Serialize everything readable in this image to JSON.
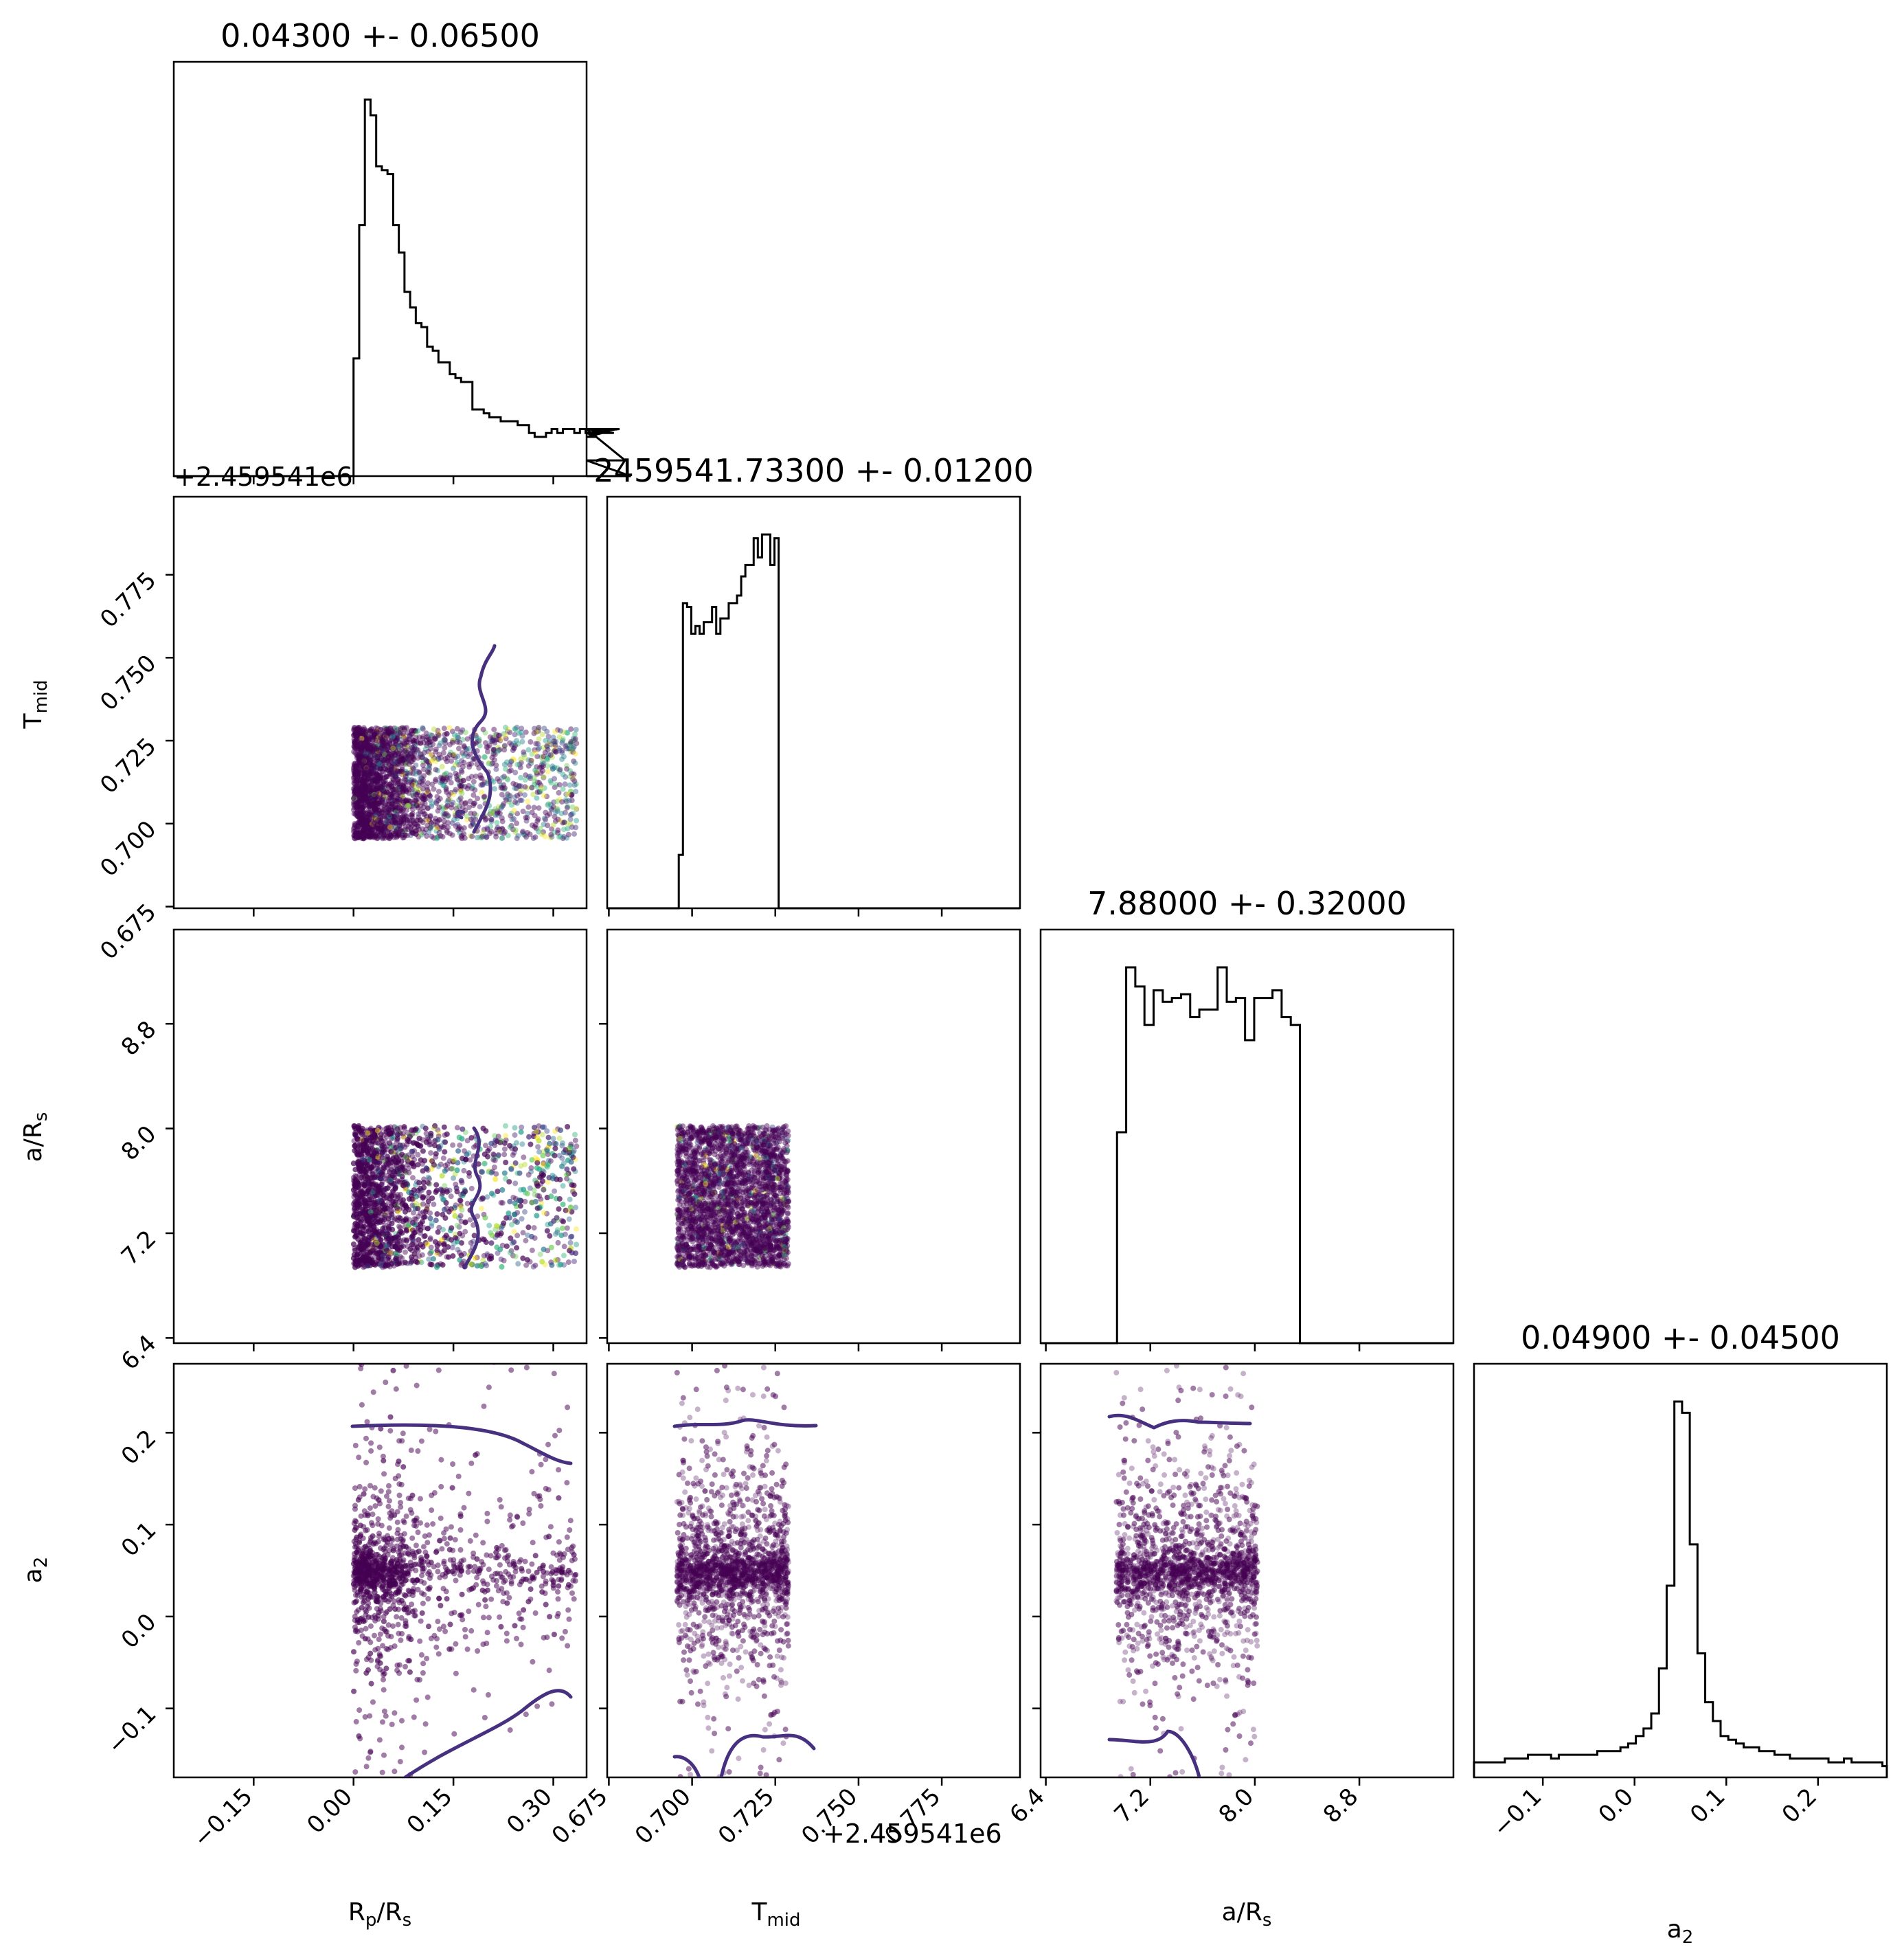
{
  "chart_data": {
    "type": "scatter",
    "subtype": "corner-plot",
    "parameters": [
      {
        "key": "rp",
        "label": "R_p/R_s",
        "title": "0.04300 +- 0.06500",
        "range": [
          -0.27,
          0.35
        ],
        "ticks": [
          "−0.15",
          "0.00",
          "0.15",
          "0.30"
        ],
        "tick_values": [
          -0.15,
          0.0,
          0.15,
          0.3
        ]
      },
      {
        "key": "tmid",
        "label": "T_mid",
        "title": "2459541.73300 +- 0.01200",
        "range": [
          0.6745,
          0.7985
        ],
        "ticks": [
          "0.675",
          "0.700",
          "0.725",
          "0.750",
          "0.775"
        ],
        "tick_values": [
          0.675,
          0.7,
          0.725,
          0.75,
          0.775
        ],
        "offset": "+2.459541e6"
      },
      {
        "key": "ars",
        "label": "a/R_s",
        "title": "7.88000 +- 0.32000",
        "range": [
          6.36,
          9.52
        ],
        "ticks": [
          "6.4",
          "7.2",
          "8.0",
          "8.8"
        ],
        "tick_values": [
          6.4,
          7.2,
          8.0,
          8.8
        ]
      },
      {
        "key": "a2",
        "label": "a_2",
        "title": "0.04900 +- 0.04500",
        "range": [
          -0.175,
          0.275
        ],
        "ticks": [
          "−0.1",
          "0.0",
          "0.1",
          "0.2"
        ],
        "tick_values": [
          -0.1,
          0.0,
          0.1,
          0.2
        ]
      }
    ],
    "histograms": {
      "rp": {
        "edges_start": 0.0,
        "bin_width": 0.0085,
        "counts": [
          30,
          64,
          96,
          92,
          79,
          78,
          77,
          64,
          57,
          47,
          43,
          39,
          38,
          33,
          32,
          29,
          29,
          26,
          25,
          24,
          24,
          17,
          17,
          16,
          15,
          15,
          14,
          14,
          14,
          13,
          13,
          11,
          10,
          10,
          11,
          12,
          11,
          12,
          12,
          11,
          12,
          11,
          11,
          10,
          11,
          12,
          11,
          12,
          4,
          0
        ]
      },
      "tmid": {
        "edges_start": 0.6935,
        "bin_width": 0.00125,
        "counts": [
          0,
          0,
          14,
          80,
          79,
          72,
          74,
          72,
          75,
          75,
          79,
          72,
          76,
          76,
          80,
          80,
          82,
          87,
          90,
          90,
          97,
          92,
          98,
          98,
          90,
          97,
          0
        ]
      },
      "ars": {
        "edges_start": 6.875,
        "bin_width": 0.07,
        "counts": [
          0,
          55,
          98,
          93,
          83,
          92,
          89,
          90,
          91,
          85,
          87,
          87,
          98,
          89,
          90,
          79,
          90,
          90,
          92,
          85,
          83,
          0
        ]
      },
      "a2": {
        "edges_start": -0.175,
        "bin_width": 0.0084,
        "counts": [
          4,
          4,
          4,
          4,
          5,
          5,
          5,
          6,
          6,
          6,
          5,
          6,
          6,
          6,
          6,
          6,
          7,
          7,
          7,
          8,
          9,
          11,
          13,
          17,
          29,
          51,
          100,
          97,
          62,
          33,
          20,
          15,
          11,
          10,
          9,
          8,
          8,
          7,
          7,
          6,
          6,
          5,
          5,
          5,
          5,
          5,
          4,
          4,
          5,
          4,
          4,
          4,
          4,
          3
        ]
      }
    },
    "contour_color": "#46307f",
    "scatter_color": "#440154",
    "scatter_colormap": "viridis",
    "grid": false,
    "legend": "none"
  },
  "axis_labels": {
    "rp": {
      "main": "R",
      "sub": "p",
      "tail": "/R",
      "sub2": "s"
    },
    "tmid": {
      "main": "T",
      "sub": "mid"
    },
    "ars": {
      "main": "a/R",
      "sub": "s"
    },
    "a2": {
      "main": "a",
      "sub": "2"
    }
  },
  "offset_texts": {
    "rp_diag_top": "+2.459541e6",
    "tmid_bottom": "+2.459541e6"
  }
}
